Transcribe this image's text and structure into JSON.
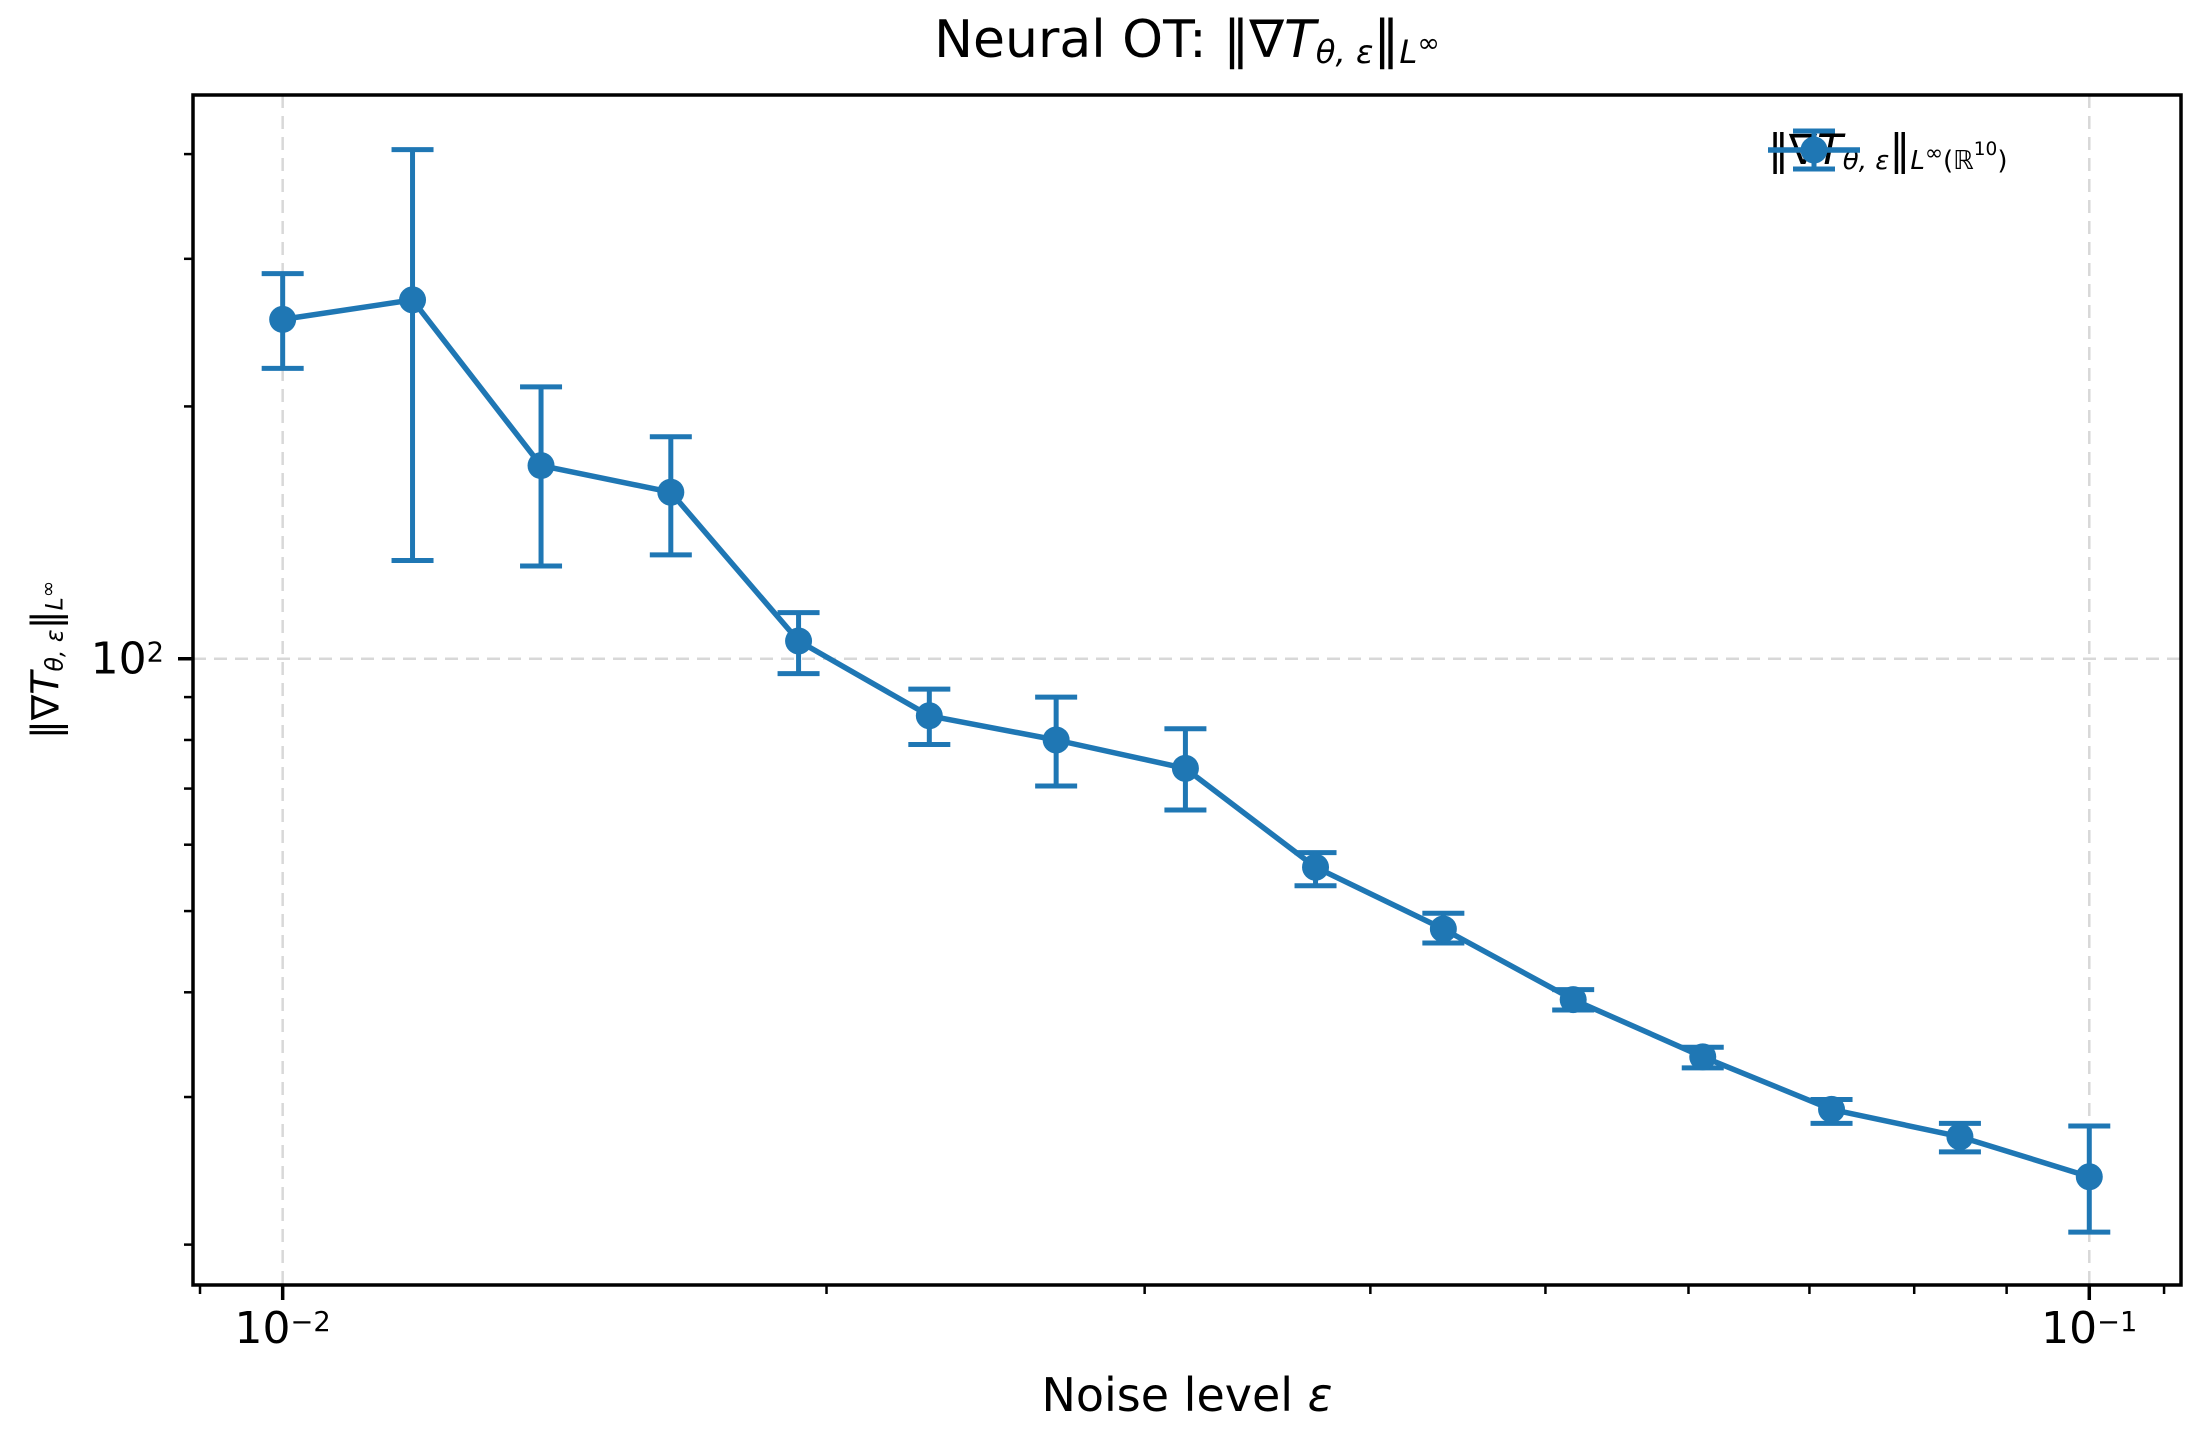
{
  "colors": {
    "series": "#1f77b4",
    "grid": "#d8d8d8",
    "frame": "#000000",
    "background": "#ffffff",
    "text": "#000000"
  },
  "chart_data": {
    "type": "line",
    "title": "Neural OT: ‖∇T_θ,ε‖_{L^∞}",
    "xlabel": "Noise level ε",
    "ylabel": "‖∇T_θ,ε‖_{L^∞}",
    "legend_label": "‖∇T_θ,ε‖_{L^∞(ℝ^10)}",
    "x_scale": "log",
    "y_scale": "log",
    "xlim": [
      0.00892,
      0.1124
    ],
    "ylim": [
      17.9,
      470.5
    ],
    "grid": true,
    "legend_position": "upper right",
    "x": [
      0.01,
      0.0118,
      0.0139,
      0.0164,
      0.0193,
      0.0228,
      0.0268,
      0.0316,
      0.0373,
      0.0439,
      0.0518,
      0.0611,
      0.072,
      0.0848,
      0.1
    ],
    "series": [
      {
        "name": "‖∇T_θ,ε‖_{L^∞(ℝ^10)}",
        "values": [
          254,
          268,
          170,
          158,
          105,
          85.5,
          80,
          74,
          56.4,
          47.6,
          39.2,
          33.5,
          29.0,
          26.9,
          24.1
        ],
        "err_low": [
          222,
          131,
          129,
          133,
          96,
          79,
          70.5,
          66,
          53.6,
          45.8,
          38.1,
          32.5,
          27.9,
          25.8,
          20.7
        ],
        "err_high": [
          288,
          405,
          211,
          184,
          113.5,
          92,
          90,
          82.5,
          58.7,
          49.7,
          40.3,
          34.4,
          29.8,
          27.9,
          27.7
        ]
      }
    ]
  },
  "axes": {
    "x_ticks": [
      {
        "value": 0.01,
        "label": [
          {
            "t": "10"
          },
          {
            "t": "−2",
            "s": "sup"
          }
        ]
      },
      {
        "value": 0.1,
        "label": [
          {
            "t": "10"
          },
          {
            "t": "−1",
            "s": "sup"
          }
        ]
      }
    ],
    "x_minor_ticks": [
      0.009,
      0.02,
      0.03,
      0.04,
      0.05,
      0.06,
      0.07,
      0.08,
      0.09,
      0.11
    ],
    "y_ticks": [
      {
        "value": 100,
        "label": [
          {
            "t": "10"
          },
          {
            "t": "2",
            "s": "sup"
          }
        ]
      }
    ],
    "y_minor_ticks": [
      20,
      30,
      40,
      50,
      60,
      70,
      80,
      90,
      200,
      300,
      400
    ]
  },
  "presentation": {
    "title": [
      {
        "t": "Neural OT: ‖∇"
      },
      {
        "t": "T",
        "s": "i"
      },
      {
        "t": "θ, ε",
        "s": "isub"
      },
      {
        "t": "‖"
      },
      {
        "t": "L",
        "s": "isub"
      },
      {
        "t": "∞",
        "s": "subsup"
      }
    ],
    "xlabel": [
      {
        "t": "Noise level "
      },
      {
        "t": "ε",
        "s": "i"
      }
    ],
    "ylabel": [
      {
        "t": "‖∇"
      },
      {
        "t": "T",
        "s": "i"
      },
      {
        "t": "θ, ε",
        "s": "isub"
      },
      {
        "t": "‖"
      },
      {
        "t": "L",
        "s": "isub"
      },
      {
        "t": "∞",
        "s": "subsup"
      }
    ],
    "legend_entry": [
      {
        "t": "‖∇"
      },
      {
        "t": "T",
        "s": "i"
      },
      {
        "t": "θ, ε",
        "s": "isub"
      },
      {
        "t": "‖"
      },
      {
        "t": "L",
        "s": "isub"
      },
      {
        "t": "∞",
        "s": "subsup"
      },
      {
        "t": "(ℝ",
        "s": "sub"
      },
      {
        "t": "10",
        "s": "subsup2"
      },
      {
        "t": ")",
        "s": "sub"
      }
    ]
  }
}
